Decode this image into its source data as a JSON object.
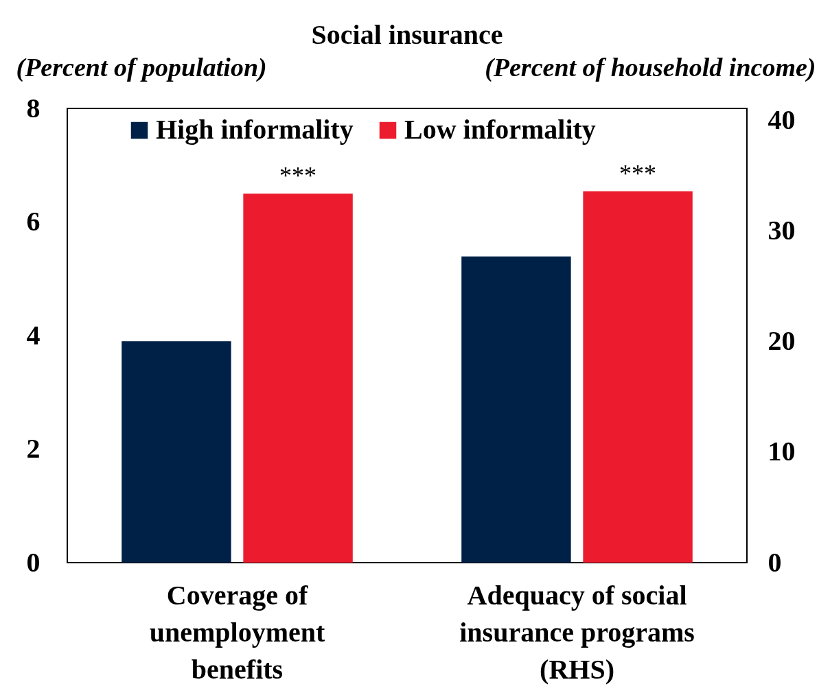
{
  "chart_data": {
    "type": "bar",
    "title": "Social insurance",
    "ylabel": "(Percent of population)",
    "y2label": "(Percent of household income)",
    "categories": [
      "Coverage of unemployment benefits",
      "Adequacy of social insurance programs (RHS)"
    ],
    "series": [
      {
        "name": "High informality",
        "color": "#002147",
        "values": [
          3.9,
          null
        ]
      },
      {
        "name": "Low informality",
        "color": "#ec1c2e",
        "values": [
          6.5,
          null
        ]
      },
      {
        "color": "#002147",
        "values": [
          null,
          27.7
        ],
        "axis": "y2"
      },
      {
        "color": "#ec1c2e",
        "values": [
          null,
          33.6
        ],
        "axis": "y2"
      }
    ],
    "ylim": [
      0,
      8
    ],
    "yticks": [
      0,
      2,
      4,
      6,
      8
    ],
    "y2lim": [
      0,
      41.1
    ],
    "y2ticks": [
      0,
      10,
      20,
      30,
      40
    ],
    "annotations": [
      "***",
      "***"
    ],
    "legend": "top",
    "grid": false
  }
}
